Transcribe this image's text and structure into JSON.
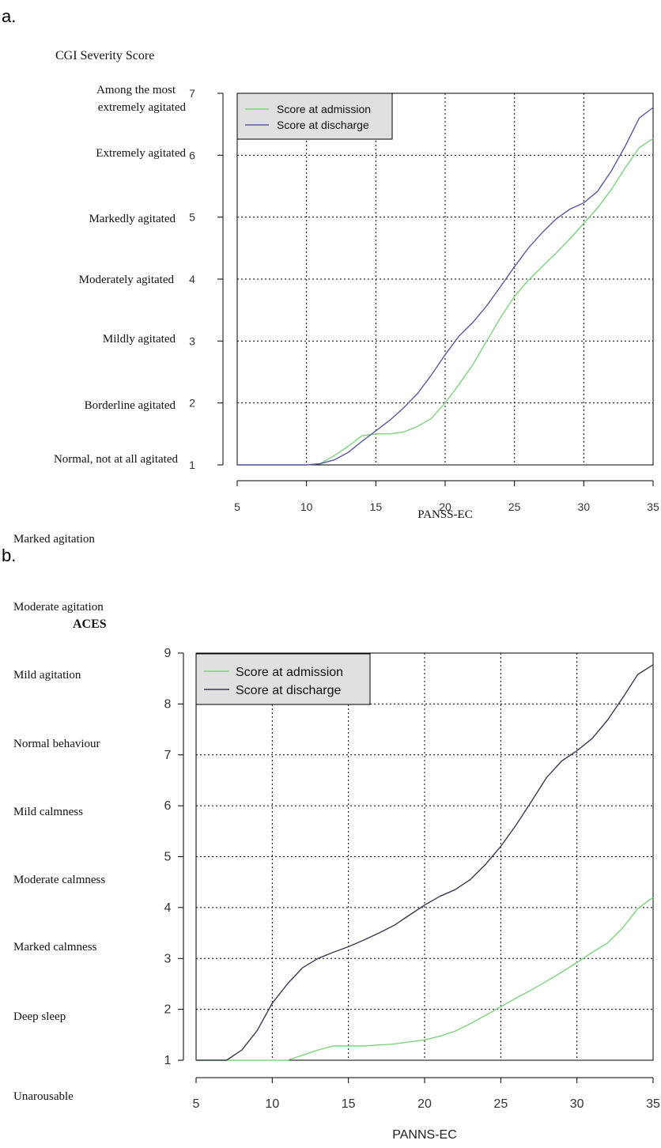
{
  "chart_data": [
    {
      "panel_label": "a.",
      "type": "line",
      "title": "CGI Severity Score",
      "xlabel": "PANSS-EC",
      "ylabel": "",
      "xlim": [
        5,
        35
      ],
      "ylim": [
        1,
        7
      ],
      "x_ticks": [
        5,
        10,
        15,
        20,
        25,
        30,
        35
      ],
      "y_ticks": [
        1,
        2,
        3,
        4,
        5,
        6,
        7
      ],
      "y_level_labels": [
        "Normal, not at all agitated",
        "Borderline agitated",
        "Mildly agitated",
        "Moderately agitated",
        "Markedly agitated",
        "Extremely agitated",
        "Among the most extremely agitated"
      ],
      "grid": true,
      "legend_position": "top-left",
      "series": [
        {
          "name": "Score at admission",
          "color": "#7ed47e",
          "x": [
            5,
            10,
            11,
            12,
            13,
            14,
            15,
            16,
            17,
            18,
            19,
            20,
            21,
            22,
            23,
            24,
            25,
            26,
            27,
            28,
            29,
            30,
            31,
            32,
            33,
            34,
            35
          ],
          "y": [
            1,
            1,
            1.02,
            1.15,
            1.3,
            1.47,
            1.5,
            1.5,
            1.53,
            1.62,
            1.75,
            2.0,
            2.3,
            2.62,
            3.0,
            3.38,
            3.72,
            3.98,
            4.2,
            4.42,
            4.65,
            4.9,
            5.15,
            5.45,
            5.8,
            6.12,
            6.27
          ]
        },
        {
          "name": "Score at discharge",
          "color": "#5a5a9e",
          "x": [
            5,
            10,
            11,
            12,
            13,
            14,
            15,
            16,
            17,
            18,
            19,
            20,
            21,
            22,
            23,
            24,
            25,
            26,
            27,
            28,
            29,
            30,
            31,
            32,
            33,
            34,
            35
          ],
          "y": [
            1,
            1,
            1.02,
            1.08,
            1.2,
            1.38,
            1.55,
            1.72,
            1.92,
            2.15,
            2.45,
            2.78,
            3.08,
            3.3,
            3.57,
            3.88,
            4.2,
            4.5,
            4.75,
            4.97,
            5.13,
            5.23,
            5.42,
            5.75,
            6.15,
            6.6,
            6.77
          ]
        }
      ]
    },
    {
      "panel_label": "b.",
      "type": "line",
      "title": "ACES",
      "xlabel": "PANNS-EC",
      "ylabel": "",
      "xlim": [
        5,
        35
      ],
      "ylim": [
        1,
        9
      ],
      "x_ticks": [
        5,
        10,
        15,
        20,
        25,
        30,
        35
      ],
      "y_ticks": [
        1,
        2,
        3,
        4,
        5,
        6,
        7,
        8,
        9
      ],
      "y_level_labels": [
        "Unarousable",
        "Deep sleep",
        "Marked calmness",
        "Moderate calmness",
        "Mild calmness",
        "Normal behaviour",
        "Mild agitation",
        "Moderate agitation",
        "Marked agitation"
      ],
      "grid": true,
      "legend_position": "top-left",
      "series": [
        {
          "name": "Score at admission",
          "color": "#7ed47e",
          "x": [
            5,
            7,
            11,
            12,
            13,
            14,
            15,
            16,
            17,
            18,
            19,
            20,
            21,
            22,
            23,
            24,
            25,
            26,
            27,
            28,
            29,
            30,
            31,
            32,
            33,
            34,
            35
          ],
          "y": [
            1,
            1,
            1,
            1.1,
            1.2,
            1.28,
            1.28,
            1.28,
            1.3,
            1.32,
            1.36,
            1.4,
            1.47,
            1.57,
            1.72,
            1.88,
            2.05,
            2.22,
            2.38,
            2.55,
            2.73,
            2.92,
            3.12,
            3.3,
            3.6,
            3.98,
            4.2
          ]
        },
        {
          "name": "Score at discharge",
          "color": "#3a3a4e",
          "x": [
            5,
            7,
            8,
            9,
            10,
            11,
            12,
            13,
            14,
            15,
            16,
            17,
            18,
            19,
            20,
            21,
            22,
            23,
            24,
            25,
            26,
            27,
            28,
            29,
            30,
            31,
            32,
            33,
            34,
            35
          ],
          "y": [
            1,
            1,
            1.2,
            1.58,
            2.12,
            2.5,
            2.82,
            3.0,
            3.12,
            3.23,
            3.36,
            3.5,
            3.65,
            3.85,
            4.05,
            4.22,
            4.35,
            4.55,
            4.85,
            5.2,
            5.62,
            6.08,
            6.55,
            6.88,
            7.08,
            7.32,
            7.68,
            8.12,
            8.58,
            8.77
          ]
        }
      ]
    }
  ]
}
